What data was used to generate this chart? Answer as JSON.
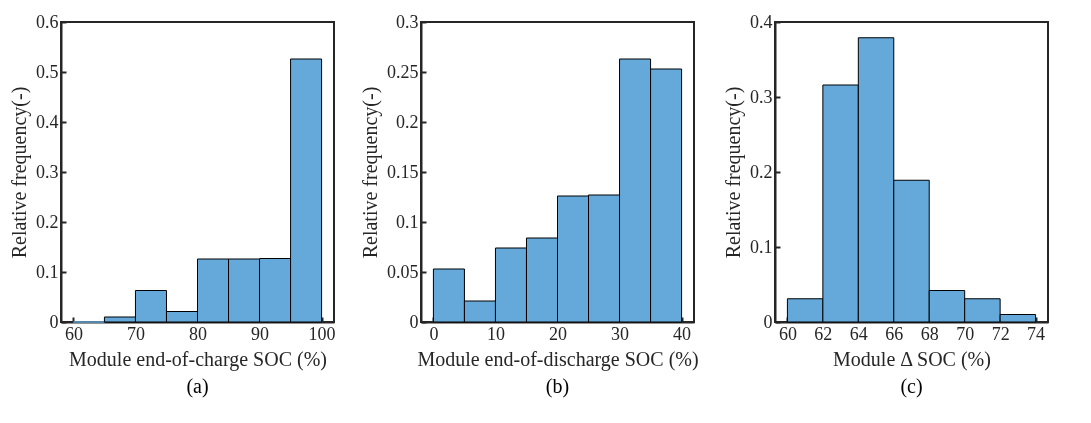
{
  "chart_data": [
    {
      "type": "histogram",
      "title": "(a)",
      "xlabel": "Module end-of-charge SOC (%)",
      "ylabel": "Relative frequency(-)",
      "color": "#64a9d9",
      "bins": [
        60,
        65,
        70,
        75,
        80,
        85,
        90,
        95,
        100
      ],
      "values": [
        0,
        0.01,
        0.063,
        0.021,
        0.126,
        0.126,
        0.127,
        0.526
      ],
      "xlim": [
        58,
        102
      ],
      "xticks": [
        60,
        70,
        80,
        90,
        100
      ],
      "ylim": [
        0,
        0.6
      ],
      "yticks": [
        0,
        0.1,
        0.2,
        0.3,
        0.4,
        0.5,
        0.6
      ],
      "grid": false
    },
    {
      "type": "histogram",
      "title": "(b)",
      "xlabel": "Module end-of-discharge SOC (%)",
      "ylabel": "Relative frequency(-)",
      "color": "#64a9d9",
      "bins": [
        0,
        5,
        10,
        15,
        20,
        25,
        30,
        35,
        40
      ],
      "values": [
        0.053,
        0.021,
        0.074,
        0.084,
        0.126,
        0.127,
        0.263,
        0.253
      ],
      "xlim": [
        -2,
        42
      ],
      "xticks": [
        0,
        10,
        20,
        30,
        40
      ],
      "ylim": [
        0,
        0.3
      ],
      "yticks": [
        0,
        0.05,
        0.1,
        0.15,
        0.2,
        0.25,
        0.3
      ],
      "grid": false
    },
    {
      "type": "histogram",
      "title": "(c)",
      "xlabel": "Module Δ SOC (%)",
      "ylabel": "Relative frequency(-)",
      "color": "#64a9d9",
      "bins": [
        60,
        62,
        64,
        66,
        68,
        70,
        72,
        74
      ],
      "values": [
        0.031,
        0.316,
        0.379,
        0.189,
        0.042,
        0.031,
        0.01
      ],
      "xlim": [
        59.3,
        74.7
      ],
      "xticks": [
        60,
        62,
        64,
        66,
        68,
        70,
        72,
        74
      ],
      "ylim": [
        0,
        0.4
      ],
      "yticks": [
        0,
        0.1,
        0.2,
        0.3,
        0.4
      ],
      "grid": false
    }
  ]
}
